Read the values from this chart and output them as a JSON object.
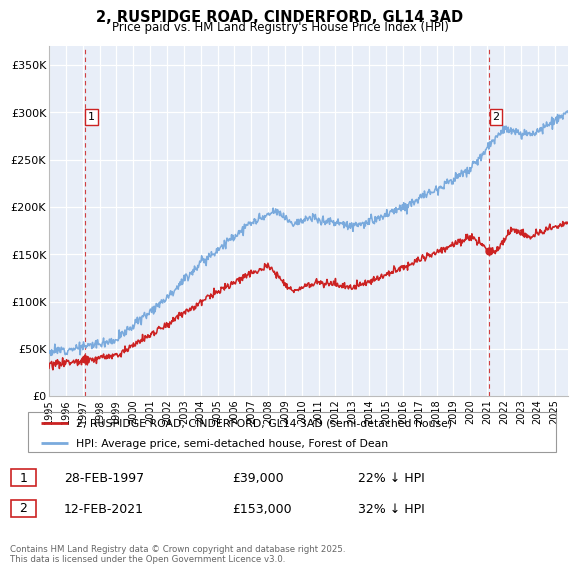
{
  "title": "2, RUSPIDGE ROAD, CINDERFORD, GL14 3AD",
  "subtitle": "Price paid vs. HM Land Registry's House Price Index (HPI)",
  "ylabel_ticks": [
    "£0",
    "£50K",
    "£100K",
    "£150K",
    "£200K",
    "£250K",
    "£300K",
    "£350K"
  ],
  "ylim": [
    0,
    370000
  ],
  "yticks": [
    0,
    50000,
    100000,
    150000,
    200000,
    250000,
    300000,
    350000
  ],
  "sale1_year": 1997.12,
  "sale1_price": 39000,
  "sale1_label": "1",
  "sale1_date": "28-FEB-1997",
  "sale1_hpi_diff": "22% ↓ HPI",
  "sale2_year": 2021.12,
  "sale2_price": 153000,
  "sale2_label": "2",
  "sale2_date": "12-FEB-2021",
  "sale2_hpi_diff": "32% ↓ HPI",
  "hpi_color": "#7aaadd",
  "price_color": "#cc2222",
  "dashed_line_color": "#cc2222",
  "background_color": "#e8eef8",
  "legend_label_red": "2, RUSPIDGE ROAD, CINDERFORD, GL14 3AD (semi-detached house)",
  "legend_label_blue": "HPI: Average price, semi-detached house, Forest of Dean",
  "footer": "Contains HM Land Registry data © Crown copyright and database right 2025.\nThis data is licensed under the Open Government Licence v3.0.",
  "xmin": 1995,
  "xmax": 2025.8
}
